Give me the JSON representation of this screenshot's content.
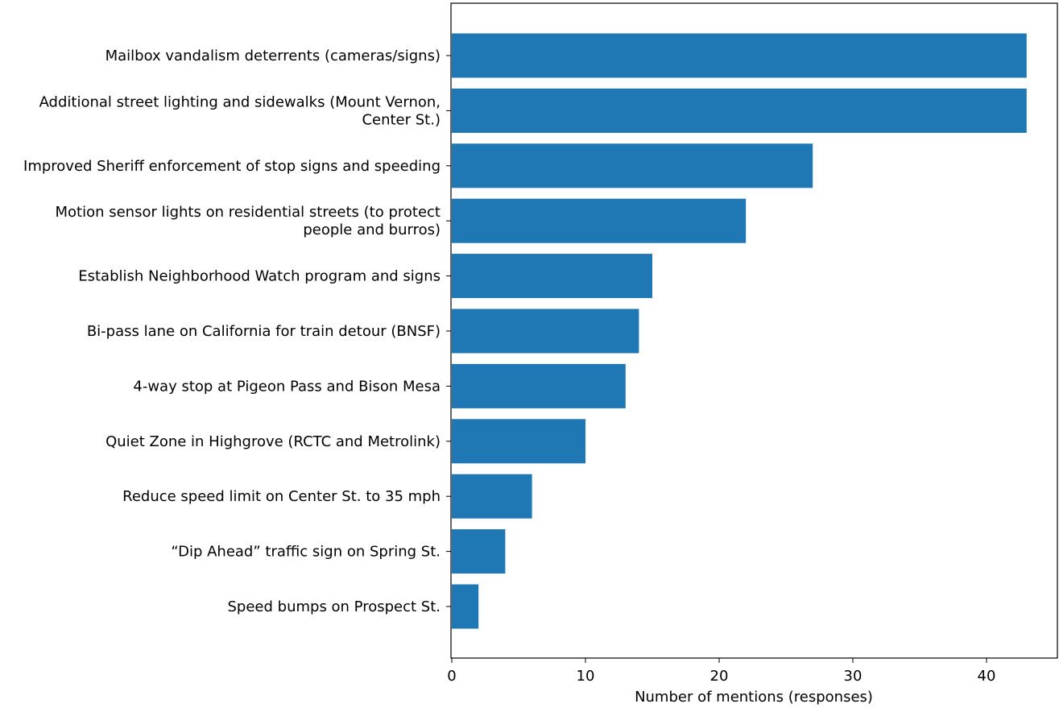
{
  "colors": {
    "bar": "#1f77b4",
    "axis": "#000000",
    "background": "#ffffff"
  },
  "chart_data": {
    "type": "bar",
    "orientation": "horizontal",
    "title": "",
    "xlabel": "Number of mentions (responses)",
    "ylabel": "",
    "xlim": [
      0,
      45
    ],
    "xticks": [
      0,
      10,
      20,
      30,
      40
    ],
    "grid": false,
    "legend": "none",
    "categories": [
      [
        "Mailbox vandalism deterrents (cameras/signs)"
      ],
      [
        "Additional street lighting and sidewalks (Mount Vernon,",
        "Center St.)"
      ],
      [
        "Improved Sheriff enforcement of stop signs and speeding"
      ],
      [
        "Motion sensor lights on residential streets (to protect",
        "people and burros)"
      ],
      [
        "Establish Neighborhood Watch program and signs"
      ],
      [
        "Bi-pass lane on California for train detour (BNSF)"
      ],
      [
        "4-way stop at Pigeon Pass and Bison Mesa"
      ],
      [
        "Quiet Zone in Highgrove (RCTC and Metrolink)"
      ],
      [
        "Reduce speed limit on Center St. to 35 mph"
      ],
      [
        "“Dip Ahead” traffic sign on Spring St."
      ],
      [
        "Speed bumps on Prospect St."
      ]
    ],
    "values": [
      43,
      43,
      27,
      22,
      15,
      14,
      13,
      10,
      6,
      4,
      2
    ]
  }
}
